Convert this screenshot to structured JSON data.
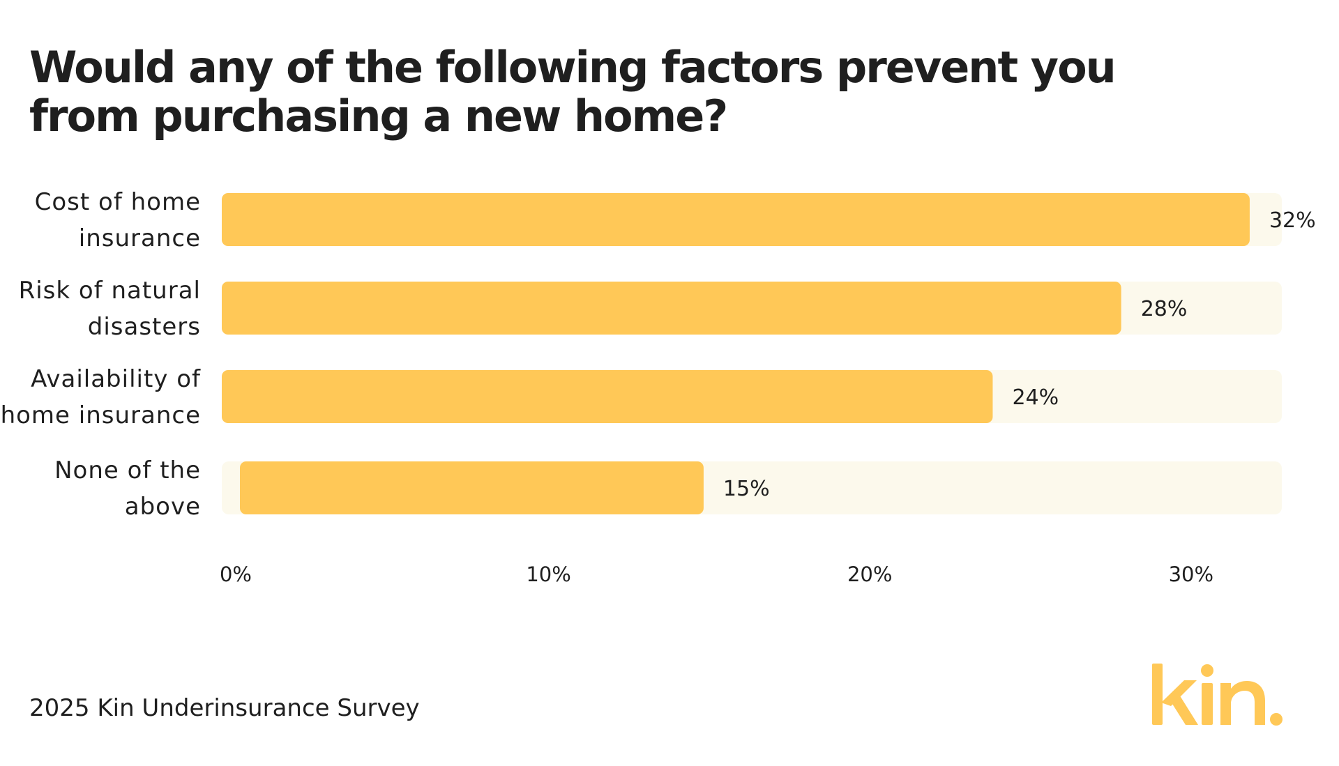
{
  "chart_data": {
    "type": "bar",
    "orientation": "horizontal",
    "title": "Would any of the following factors prevent you from purchasing a new home?",
    "categories": [
      [
        "Cost of home",
        "insurance"
      ],
      [
        "Risk of natural",
        "disasters"
      ],
      [
        "Availability of",
        "home insurance"
      ],
      [
        "None of the",
        "above"
      ]
    ],
    "values": [
      32,
      28,
      24,
      15
    ],
    "value_labels": [
      "32%",
      "28%",
      "24%",
      "15%"
    ],
    "xlim": [
      0,
      33
    ],
    "ticks": [
      {
        "value": 0,
        "label": "0%"
      },
      {
        "value": 10,
        "label": "10%"
      },
      {
        "value": 20,
        "label": "20%"
      },
      {
        "value": 30,
        "label": "30%"
      }
    ],
    "grid": false,
    "legend": "none",
    "colors": {
      "bar": "#FFC857",
      "track": "#FCF9EC",
      "text": "#1F1F1F"
    }
  },
  "footer": {
    "source": "2025 Kin Underinsurance Survey"
  },
  "logo": {
    "text": "kin.",
    "color": "#FFC857"
  }
}
